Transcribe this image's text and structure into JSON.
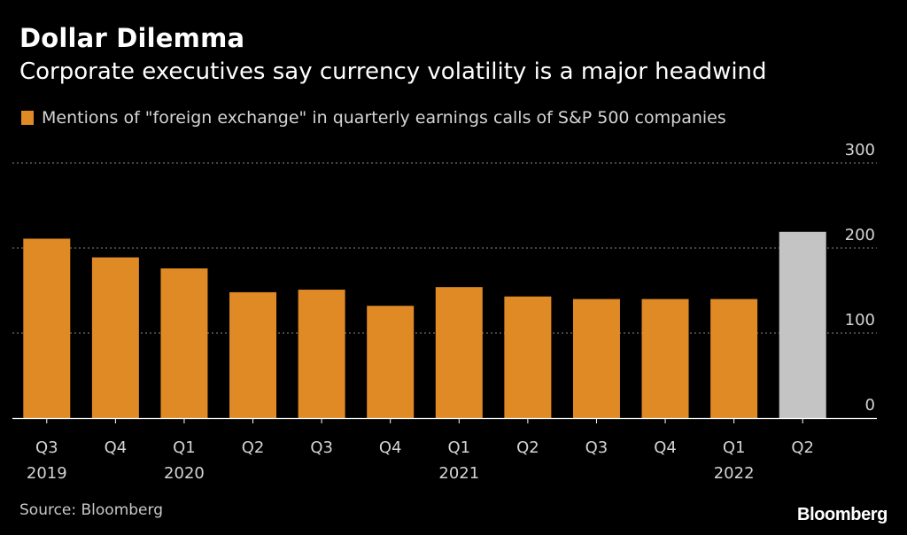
{
  "header": {
    "title": "Dollar Dilemma",
    "subtitle": "Corporate executives say currency volatility is a major headwind"
  },
  "legend": {
    "label": "Mentions of \"foreign exchange\" in quarterly earnings calls of S&P 500 companies"
  },
  "footer": {
    "source": "Source: Bloomberg",
    "logo": "Bloomberg"
  },
  "colors": {
    "bar": "#e08a26",
    "highlight": "#c4c4c4",
    "grid": "#6e6e6e",
    "axis_text": "#d4d4d4",
    "background": "#000000"
  },
  "chart_data": {
    "type": "bar",
    "title": "Dollar Dilemma",
    "subtitle": "Corporate executives say currency volatility is a major headwind",
    "xlabel": "",
    "ylabel": "",
    "ylim": [
      0,
      300
    ],
    "yticks": [
      0,
      100,
      200,
      300
    ],
    "grid": true,
    "y_axis_side": "right",
    "categories": [
      "Q3 2019",
      "Q4 2019",
      "Q1 2020",
      "Q2 2020",
      "Q3 2020",
      "Q4 2020",
      "Q1 2021",
      "Q2 2021",
      "Q3 2021",
      "Q4 2021",
      "Q1 2022",
      "Q2 2022"
    ],
    "tick_labels": [
      {
        "quarter": "Q3",
        "year": "2019"
      },
      {
        "quarter": "Q4",
        "year": ""
      },
      {
        "quarter": "Q1",
        "year": "2020"
      },
      {
        "quarter": "Q2",
        "year": ""
      },
      {
        "quarter": "Q3",
        "year": ""
      },
      {
        "quarter": "Q4",
        "year": ""
      },
      {
        "quarter": "Q1",
        "year": "2021"
      },
      {
        "quarter": "Q2",
        "year": ""
      },
      {
        "quarter": "Q3",
        "year": ""
      },
      {
        "quarter": "Q4",
        "year": ""
      },
      {
        "quarter": "Q1",
        "year": "2022"
      },
      {
        "quarter": "Q2",
        "year": ""
      }
    ],
    "series": [
      {
        "name": "Mentions of \"foreign exchange\" in quarterly earnings calls of S&P 500 companies",
        "values": [
          211,
          189,
          176,
          148,
          151,
          132,
          154,
          143,
          140,
          140,
          140,
          219
        ]
      }
    ],
    "highlight_index": 11,
    "legend_position": "top-left"
  }
}
